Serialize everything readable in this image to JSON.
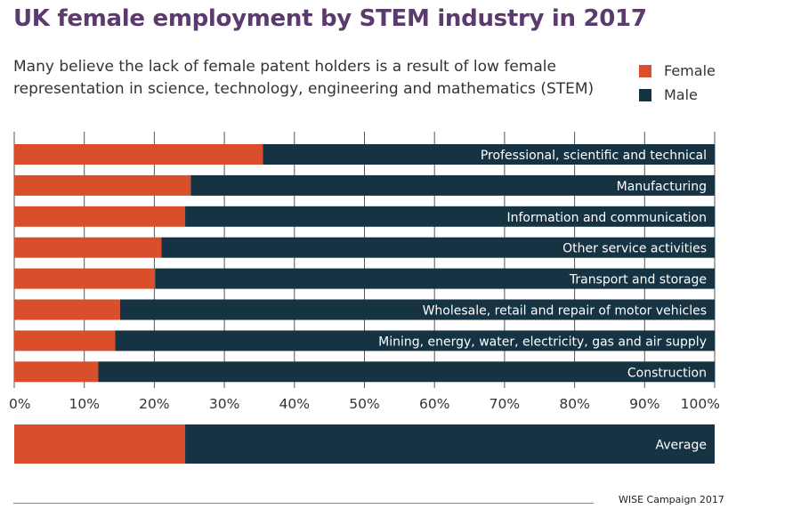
{
  "title": "UK female employment by STEM industry in 2017",
  "subtitle": "Many believe the lack of female patent holders is a result of low female representation in science, technology, engineering and mathematics (STEM)",
  "legend": {
    "female": "Female",
    "male": "Male"
  },
  "source": "WISE Campaign 2017",
  "colors": {
    "female": "#d94f2b",
    "male": "#163343",
    "grid": "#555555",
    "label": "#ffffff",
    "tick": "#333333"
  },
  "chart_data": {
    "type": "bar",
    "orientation": "horizontal",
    "stacked": true,
    "title": "UK female employment by STEM industry in 2017",
    "categories": [
      "Professional, scientific and technical",
      "Manufacturing",
      "Information and communication",
      "Other service activities",
      "Transport and storage",
      "Wholesale, retail and repair of motor vehicles",
      "Mining, energy, water, electricity, gas and air supply",
      "Construction"
    ],
    "series": [
      {
        "name": "Female",
        "values": [
          35.5,
          25.2,
          24.4,
          21.0,
          20.1,
          15.1,
          14.4,
          12.0
        ]
      },
      {
        "name": "Male",
        "values": [
          64.5,
          74.8,
          75.6,
          79.0,
          79.9,
          84.9,
          85.6,
          88.0
        ]
      }
    ],
    "average": {
      "label": "Average",
      "female": 24.4,
      "male": 75.6
    },
    "xlim": [
      0,
      100
    ],
    "xticks": [
      "0%",
      "10%",
      "20%",
      "30%",
      "40%",
      "50%",
      "60%",
      "70%",
      "80%",
      "90%",
      "100%"
    ],
    "grid": true,
    "legend_position": "top-right"
  }
}
